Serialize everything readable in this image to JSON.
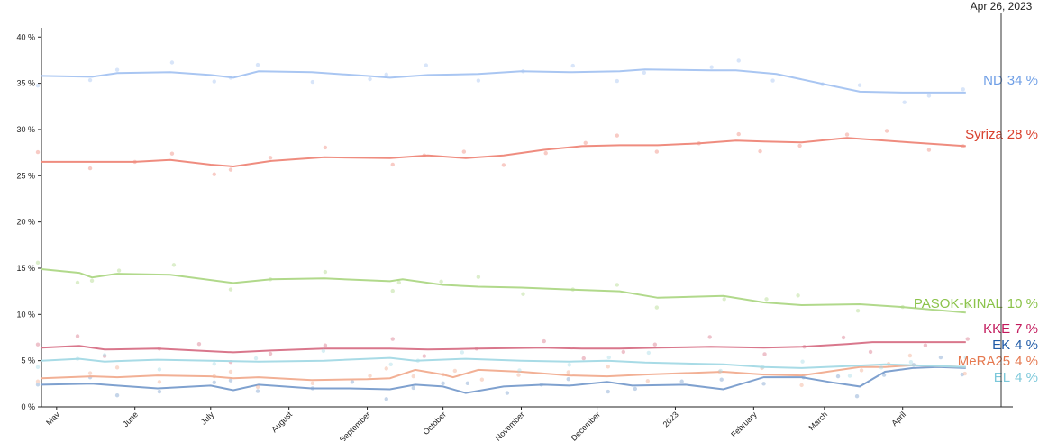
{
  "chart_data": {
    "type": "line",
    "date_label": "Apr 26, 2023",
    "ylim": [
      0,
      41
    ],
    "y_ticks": [
      {
        "value": 0,
        "label": "0 %"
      },
      {
        "value": 5,
        "label": "5 %"
      },
      {
        "value": 10,
        "label": "10 %"
      },
      {
        "value": 15,
        "label": "15 %"
      },
      {
        "value": 20,
        "label": "20 %"
      },
      {
        "value": 25,
        "label": "25 %"
      },
      {
        "value": 30,
        "label": "30 %"
      },
      {
        "value": 35,
        "label": "35 %"
      },
      {
        "value": 40,
        "label": "40 %"
      }
    ],
    "xlim": [
      "2022-04-25",
      "2023-05-10"
    ],
    "x_ticks": [
      {
        "date": "2022-05-01",
        "label": "May"
      },
      {
        "date": "2022-06-01",
        "label": "June"
      },
      {
        "date": "2022-07-01",
        "label": "July"
      },
      {
        "date": "2022-08-01",
        "label": "August"
      },
      {
        "date": "2022-09-01",
        "label": "September"
      },
      {
        "date": "2022-10-01",
        "label": "October"
      },
      {
        "date": "2022-11-01",
        "label": "November"
      },
      {
        "date": "2022-12-01",
        "label": "December"
      },
      {
        "date": "2023-01-01",
        "label": "2023"
      },
      {
        "date": "2023-02-01",
        "label": "February"
      },
      {
        "date": "2023-03-01",
        "label": "March"
      },
      {
        "date": "2023-04-01",
        "label": "April"
      }
    ],
    "series": [
      {
        "name": "ND",
        "value_label": "34 %",
        "color": "#a9c6f2",
        "label_color": "#6f9fe6",
        "points": [
          [
            "2022-04-25",
            35.8
          ],
          [
            "2022-05-15",
            35.7
          ],
          [
            "2022-05-25",
            36.1
          ],
          [
            "2022-06-15",
            36.2
          ],
          [
            "2022-07-01",
            35.9
          ],
          [
            "2022-07-10",
            35.6
          ],
          [
            "2022-07-20",
            36.3
          ],
          [
            "2022-08-10",
            36.2
          ],
          [
            "2022-09-01",
            35.8
          ],
          [
            "2022-09-10",
            35.6
          ],
          [
            "2022-09-25",
            35.9
          ],
          [
            "2022-10-15",
            36.0
          ],
          [
            "2022-11-01",
            36.3
          ],
          [
            "2022-11-20",
            36.2
          ],
          [
            "2022-12-10",
            36.3
          ],
          [
            "2022-12-20",
            36.5
          ],
          [
            "2023-01-15",
            36.4
          ],
          [
            "2023-01-25",
            36.4
          ],
          [
            "2023-02-10",
            36.0
          ],
          [
            "2023-03-01",
            34.9
          ],
          [
            "2023-03-15",
            34.1
          ],
          [
            "2023-04-01",
            34.0
          ],
          [
            "2023-04-10",
            34.0
          ],
          [
            "2023-04-26",
            34.0
          ]
        ]
      },
      {
        "name": "Syriza",
        "value_label": "28 %",
        "color": "#ef8c7f",
        "label_color": "#d9412e",
        "points": [
          [
            "2022-04-25",
            26.5
          ],
          [
            "2022-05-15",
            26.5
          ],
          [
            "2022-06-01",
            26.5
          ],
          [
            "2022-06-15",
            26.7
          ],
          [
            "2022-07-01",
            26.2
          ],
          [
            "2022-07-10",
            26.0
          ],
          [
            "2022-07-25",
            26.6
          ],
          [
            "2022-08-15",
            27.0
          ],
          [
            "2022-09-10",
            26.9
          ],
          [
            "2022-09-25",
            27.2
          ],
          [
            "2022-10-10",
            26.9
          ],
          [
            "2022-10-25",
            27.2
          ],
          [
            "2022-11-10",
            27.8
          ],
          [
            "2022-11-25",
            28.2
          ],
          [
            "2022-12-10",
            28.3
          ],
          [
            "2022-12-25",
            28.3
          ],
          [
            "2023-01-10",
            28.5
          ],
          [
            "2023-01-25",
            28.8
          ],
          [
            "2023-02-05",
            28.7
          ],
          [
            "2023-02-20",
            28.6
          ],
          [
            "2023-03-10",
            29.1
          ],
          [
            "2023-03-25",
            28.8
          ],
          [
            "2023-04-10",
            28.5
          ],
          [
            "2023-04-26",
            28.2
          ]
        ]
      },
      {
        "name": "PASOK-KINAL",
        "value_label": "10 %",
        "color": "#b1d98b",
        "label_color": "#8bc34a",
        "points": [
          [
            "2022-04-25",
            14.9
          ],
          [
            "2022-05-10",
            14.5
          ],
          [
            "2022-05-15",
            14.0
          ],
          [
            "2022-05-25",
            14.4
          ],
          [
            "2022-06-15",
            14.3
          ],
          [
            "2022-07-10",
            13.4
          ],
          [
            "2022-07-25",
            13.8
          ],
          [
            "2022-08-15",
            13.9
          ],
          [
            "2022-09-10",
            13.6
          ],
          [
            "2022-09-15",
            13.8
          ],
          [
            "2022-10-01",
            13.2
          ],
          [
            "2022-10-15",
            13.0
          ],
          [
            "2022-11-01",
            12.9
          ],
          [
            "2022-11-20",
            12.7
          ],
          [
            "2022-12-10",
            12.5
          ],
          [
            "2022-12-25",
            11.8
          ],
          [
            "2023-01-20",
            12.0
          ],
          [
            "2023-02-05",
            11.3
          ],
          [
            "2023-02-20",
            11.0
          ],
          [
            "2023-03-15",
            11.1
          ],
          [
            "2023-04-01",
            10.8
          ],
          [
            "2023-04-26",
            10.2
          ]
        ]
      },
      {
        "name": "KKE",
        "value_label": "7 %",
        "color": "#d9778c",
        "label_color": "#c2185b",
        "points": [
          [
            "2022-04-25",
            6.4
          ],
          [
            "2022-05-10",
            6.6
          ],
          [
            "2022-05-20",
            6.2
          ],
          [
            "2022-06-10",
            6.3
          ],
          [
            "2022-06-25",
            6.1
          ],
          [
            "2022-07-10",
            5.9
          ],
          [
            "2022-07-25",
            6.1
          ],
          [
            "2022-08-15",
            6.3
          ],
          [
            "2022-09-10",
            6.3
          ],
          [
            "2022-09-25",
            6.2
          ],
          [
            "2022-10-15",
            6.3
          ],
          [
            "2022-11-10",
            6.4
          ],
          [
            "2022-11-25",
            6.3
          ],
          [
            "2022-12-10",
            6.3
          ],
          [
            "2022-12-25",
            6.4
          ],
          [
            "2023-01-15",
            6.5
          ],
          [
            "2023-02-05",
            6.4
          ],
          [
            "2023-02-20",
            6.5
          ],
          [
            "2023-03-10",
            6.8
          ],
          [
            "2023-03-20",
            7.0
          ],
          [
            "2023-04-10",
            7.0
          ],
          [
            "2023-04-26",
            7.0
          ]
        ]
      },
      {
        "name": "EK",
        "value_label": "4 %",
        "color": "#7fa1cf",
        "label_color": "#1f5aa6",
        "points": [
          [
            "2022-04-25",
            2.4
          ],
          [
            "2022-05-15",
            2.5
          ],
          [
            "2022-05-25",
            2.3
          ],
          [
            "2022-06-10",
            2.0
          ],
          [
            "2022-07-01",
            2.3
          ],
          [
            "2022-07-10",
            1.8
          ],
          [
            "2022-07-20",
            2.4
          ],
          [
            "2022-08-10",
            2.0
          ],
          [
            "2022-08-25",
            2.0
          ],
          [
            "2022-09-10",
            1.9
          ],
          [
            "2022-09-20",
            2.4
          ],
          [
            "2022-10-01",
            2.2
          ],
          [
            "2022-10-10",
            1.5
          ],
          [
            "2022-10-25",
            2.2
          ],
          [
            "2022-11-10",
            2.4
          ],
          [
            "2022-11-20",
            2.3
          ],
          [
            "2022-12-05",
            2.7
          ],
          [
            "2022-12-15",
            2.3
          ],
          [
            "2023-01-05",
            2.4
          ],
          [
            "2023-01-20",
            1.9
          ],
          [
            "2023-02-05",
            3.2
          ],
          [
            "2023-02-20",
            3.2
          ],
          [
            "2023-03-05",
            2.6
          ],
          [
            "2023-03-15",
            2.2
          ],
          [
            "2023-03-25",
            3.8
          ],
          [
            "2023-04-05",
            4.2
          ],
          [
            "2023-04-15",
            4.3
          ],
          [
            "2023-04-26",
            4.2
          ]
        ]
      },
      {
        "name": "MeRA25",
        "value_label": "4 %",
        "color": "#f2b095",
        "label_color": "#e5784f",
        "points": [
          [
            "2022-04-25",
            3.1
          ],
          [
            "2022-05-15",
            3.3
          ],
          [
            "2022-05-25",
            3.2
          ],
          [
            "2022-06-10",
            3.4
          ],
          [
            "2022-07-01",
            3.3
          ],
          [
            "2022-07-10",
            3.1
          ],
          [
            "2022-07-20",
            3.2
          ],
          [
            "2022-08-10",
            2.9
          ],
          [
            "2022-09-01",
            3.0
          ],
          [
            "2022-09-10",
            3.1
          ],
          [
            "2022-09-20",
            4.0
          ],
          [
            "2022-10-01",
            3.5
          ],
          [
            "2022-10-05",
            3.2
          ],
          [
            "2022-10-15",
            4.0
          ],
          [
            "2022-11-01",
            3.8
          ],
          [
            "2022-11-20",
            3.4
          ],
          [
            "2022-12-05",
            3.3
          ],
          [
            "2022-12-20",
            3.5
          ],
          [
            "2023-01-20",
            3.8
          ],
          [
            "2023-02-05",
            3.5
          ],
          [
            "2023-02-20",
            3.4
          ],
          [
            "2023-03-15",
            4.3
          ],
          [
            "2023-03-25",
            4.3
          ],
          [
            "2023-04-05",
            4.5
          ],
          [
            "2023-04-26",
            4.3
          ]
        ]
      },
      {
        "name": "EL",
        "value_label": "4 %",
        "color": "#a8dbe6",
        "label_color": "#7cc8da",
        "points": [
          [
            "2022-04-25",
            5.0
          ],
          [
            "2022-05-10",
            5.2
          ],
          [
            "2022-05-20",
            4.9
          ],
          [
            "2022-06-10",
            5.1
          ],
          [
            "2022-07-01",
            5.0
          ],
          [
            "2022-07-20",
            4.9
          ],
          [
            "2022-08-15",
            5.0
          ],
          [
            "2022-09-10",
            5.3
          ],
          [
            "2022-09-20",
            5.0
          ],
          [
            "2022-10-10",
            5.2
          ],
          [
            "2022-11-01",
            5.0
          ],
          [
            "2022-11-20",
            4.9
          ],
          [
            "2022-12-05",
            5.0
          ],
          [
            "2022-12-20",
            4.8
          ],
          [
            "2023-01-20",
            4.6
          ],
          [
            "2023-02-05",
            4.3
          ],
          [
            "2023-02-20",
            4.2
          ],
          [
            "2023-03-10",
            4.4
          ],
          [
            "2023-03-25",
            4.6
          ],
          [
            "2023-04-05",
            4.5
          ],
          [
            "2023-04-26",
            4.3
          ]
        ]
      }
    ]
  }
}
